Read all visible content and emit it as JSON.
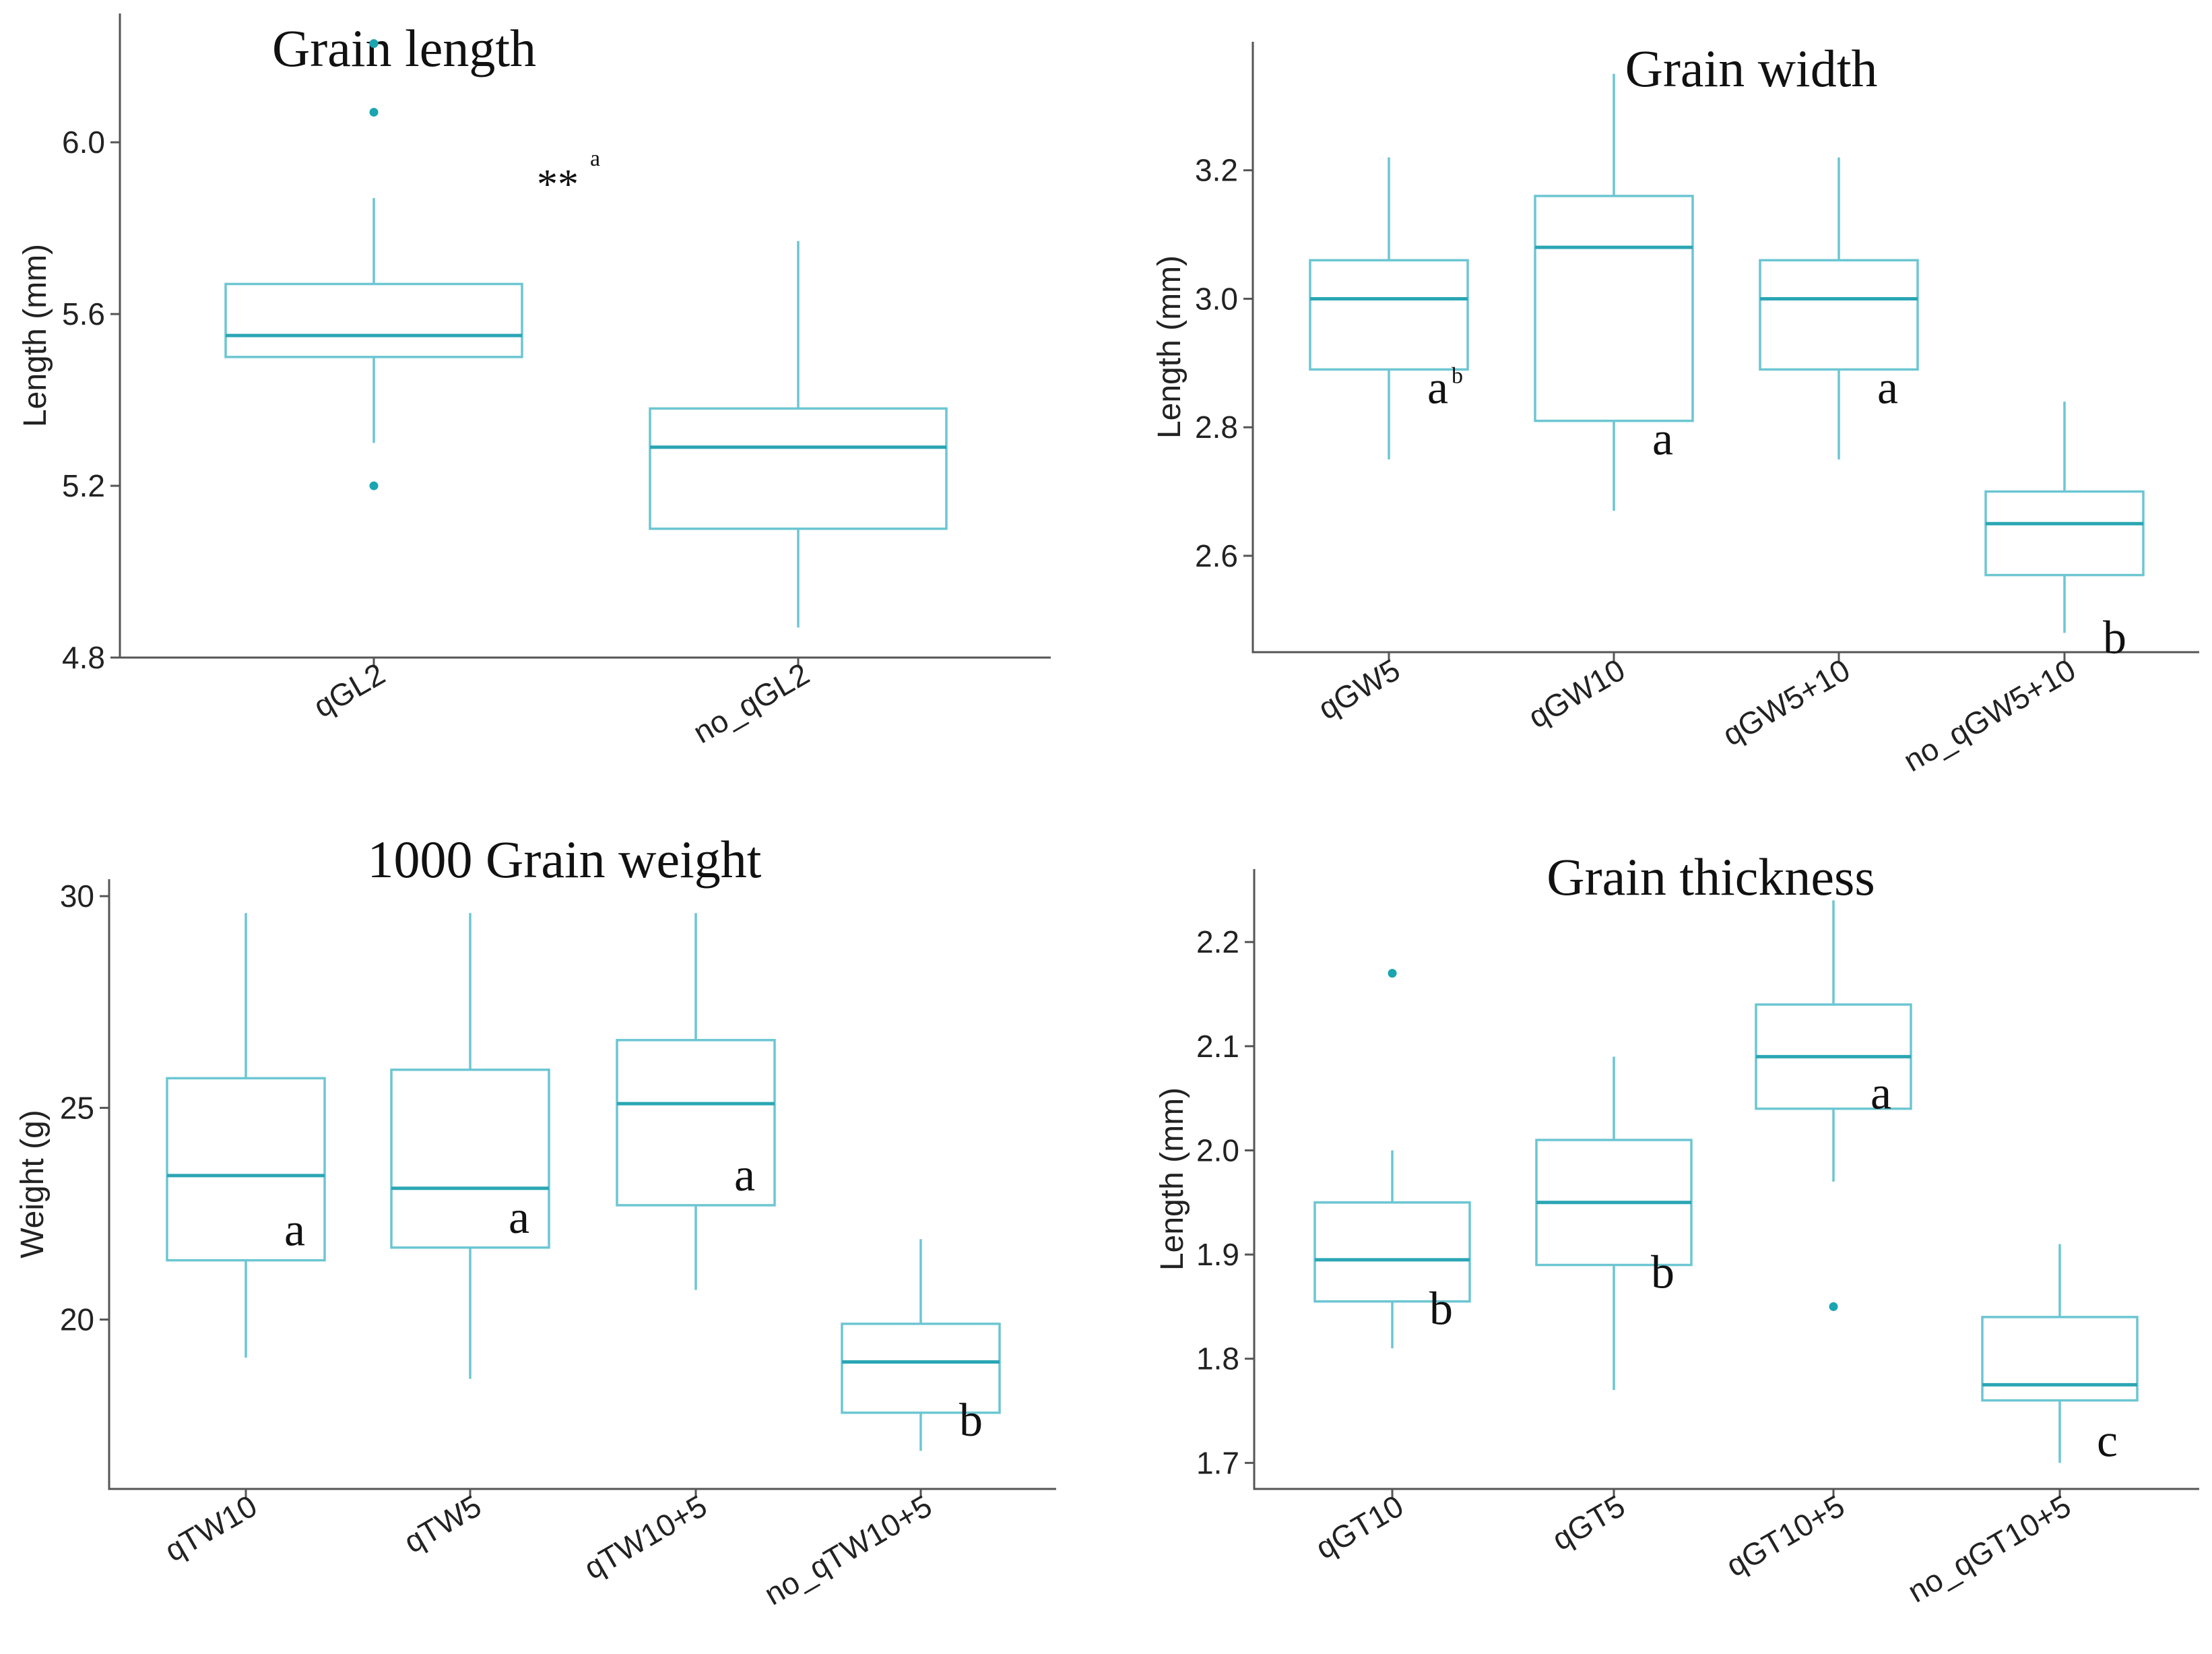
{
  "chart_data": [
    {
      "type": "boxplot",
      "title": "Grain length",
      "ylabel": "Length (mm)",
      "ylim": [
        4.8,
        6.3
      ],
      "yticks": [
        "4.8",
        "5.2",
        "5.6",
        "6.0"
      ],
      "categories": [
        "qGL2",
        "no_qGL2"
      ],
      "boxes": [
        {
          "min": 5.3,
          "q1": 5.5,
          "median": 5.55,
          "q3": 5.67,
          "max": 5.87,
          "outliers": [
            6.23,
            6.07,
            5.2
          ],
          "letter": ""
        },
        {
          "min": 4.87,
          "q1": 5.1,
          "median": 5.29,
          "q3": 5.38,
          "max": 5.77,
          "outliers": [],
          "letter": ""
        }
      ],
      "annotation": {
        "text": "**",
        "sup": "a",
        "x_between": 0.5,
        "y": 5.93
      }
    },
    {
      "type": "boxplot",
      "title": "Grain width",
      "ylabel": "Length (mm)",
      "ylim": [
        2.45,
        3.4
      ],
      "yticks": [
        "2.6",
        "2.8",
        "3.0",
        "3.2"
      ],
      "categories": [
        "qGW5",
        "qGW10",
        "qGW5+10",
        "no_qGW5+10"
      ],
      "boxes": [
        {
          "min": 2.75,
          "q1": 2.89,
          "median": 3.0,
          "q3": 3.06,
          "max": 3.22,
          "outliers": [],
          "letter": "a",
          "sup": "b"
        },
        {
          "min": 2.67,
          "q1": 2.81,
          "median": 3.08,
          "q3": 3.16,
          "max": 3.35,
          "outliers": [],
          "letter": "a",
          "sup": ""
        },
        {
          "min": 2.75,
          "q1": 2.89,
          "median": 3.0,
          "q3": 3.06,
          "max": 3.22,
          "outliers": [],
          "letter": "a",
          "sup": ""
        },
        {
          "min": 2.48,
          "q1": 2.57,
          "median": 2.65,
          "q3": 2.7,
          "max": 2.84,
          "outliers": [],
          "letter": "b",
          "sup": ""
        }
      ]
    },
    {
      "type": "boxplot",
      "title": "1000 Grain weight",
      "ylabel": "Weight (g)",
      "ylim": [
        16.0,
        30.4
      ],
      "yticks": [
        "20",
        "25",
        "30"
      ],
      "categories": [
        "qTW10",
        "qTW5",
        "qTW10+5",
        "no_qTW10+5"
      ],
      "boxes": [
        {
          "min": 19.1,
          "q1": 21.4,
          "median": 23.4,
          "q3": 25.7,
          "max": 29.6,
          "outliers": [],
          "letter": "a"
        },
        {
          "min": 18.6,
          "q1": 21.7,
          "median": 23.1,
          "q3": 25.9,
          "max": 29.6,
          "outliers": [],
          "letter": "a"
        },
        {
          "min": 20.7,
          "q1": 22.7,
          "median": 25.1,
          "q3": 26.6,
          "max": 29.6,
          "outliers": [],
          "letter": "a"
        },
        {
          "min": 16.9,
          "q1": 17.8,
          "median": 19.0,
          "q3": 19.9,
          "max": 21.9,
          "outliers": [],
          "letter": "b"
        }
      ]
    },
    {
      "type": "boxplot",
      "title": "Grain thickness",
      "ylabel": "Length (mm)",
      "ylim": [
        1.675,
        2.27
      ],
      "yticks": [
        "1.7",
        "1.8",
        "1.9",
        "2.0",
        "2.1",
        "2.2"
      ],
      "categories": [
        "qGT10",
        "qGT5",
        "qGT10+5",
        "no_qGT10+5"
      ],
      "boxes": [
        {
          "min": 1.81,
          "q1": 1.855,
          "median": 1.895,
          "q3": 1.95,
          "max": 2.0,
          "outliers": [
            2.17
          ],
          "letter": "b"
        },
        {
          "min": 1.77,
          "q1": 1.89,
          "median": 1.95,
          "q3": 2.01,
          "max": 2.09,
          "outliers": [],
          "letter": "b"
        },
        {
          "min": 1.97,
          "q1": 2.04,
          "median": 2.09,
          "q3": 2.14,
          "max": 2.24,
          "outliers": [
            1.85
          ],
          "letter": "a"
        },
        {
          "min": 1.7,
          "q1": 1.76,
          "median": 1.775,
          "q3": 1.84,
          "max": 1.91,
          "outliers": [],
          "letter": "c"
        }
      ]
    }
  ]
}
